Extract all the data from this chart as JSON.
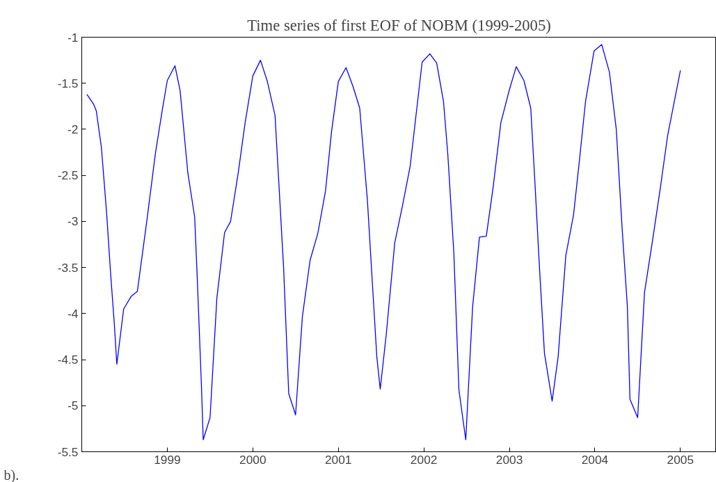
{
  "chart_data": {
    "type": "line",
    "title": "Time series of first EOF of NOBM (1999-2005)",
    "annotations": [
      "b)."
    ],
    "series": [
      {
        "color": "#0000ff",
        "x": [
          1998.06,
          1998.14,
          1998.17,
          1998.23,
          1998.29,
          1998.34,
          1998.38,
          1998.41,
          1998.49,
          1998.58,
          1998.65,
          1998.76,
          1998.86,
          1998.94,
          1999.0,
          1999.09,
          1999.15,
          1999.24,
          1999.32,
          1999.35,
          1999.4,
          1999.42,
          1999.5,
          1999.58,
          1999.67,
          1999.74,
          1999.83,
          1999.91,
          2000.0,
          2000.09,
          2000.17,
          2000.26,
          2000.36,
          2000.42,
          2000.5,
          2000.58,
          2000.67,
          2000.76,
          2000.85,
          2000.92,
          2001.0,
          2001.09,
          2001.17,
          2001.25,
          2001.34,
          2001.45,
          2001.49,
          2001.56,
          2001.66,
          2001.75,
          2001.84,
          2001.98,
          2002.07,
          2002.15,
          2002.23,
          2002.28,
          2002.35,
          2002.41,
          2002.49,
          2002.57,
          2002.65,
          2002.73,
          2002.81,
          2002.9,
          2003.0,
          2003.08,
          2003.17,
          2003.25,
          2003.3,
          2003.35,
          2003.41,
          2003.5,
          2003.57,
          2003.66,
          2003.75,
          2003.82,
          2003.89,
          2003.99,
          2004.08,
          2004.17,
          2004.25,
          2004.32,
          2004.38,
          2004.41,
          2004.5,
          2004.58,
          2004.67,
          2004.76,
          2004.85,
          2005.0
        ],
        "values": [
          -1.62,
          -1.73,
          -1.8,
          -2.2,
          -2.9,
          -3.6,
          -4.1,
          -4.55,
          -3.95,
          -3.81,
          -3.76,
          -3.0,
          -2.27,
          -1.8,
          -1.47,
          -1.31,
          -1.58,
          -2.47,
          -2.95,
          -3.6,
          -4.8,
          -5.37,
          -5.13,
          -3.83,
          -3.12,
          -3.0,
          -2.47,
          -1.93,
          -1.42,
          -1.25,
          -1.48,
          -1.85,
          -3.5,
          -4.87,
          -5.1,
          -4.03,
          -3.42,
          -3.13,
          -2.67,
          -2.03,
          -1.48,
          -1.33,
          -1.53,
          -1.77,
          -2.77,
          -4.47,
          -4.82,
          -4.23,
          -3.23,
          -2.83,
          -2.4,
          -1.27,
          -1.18,
          -1.28,
          -1.7,
          -2.27,
          -3.33,
          -4.83,
          -5.37,
          -3.93,
          -3.17,
          -3.16,
          -2.63,
          -1.93,
          -1.57,
          -1.32,
          -1.47,
          -1.77,
          -2.6,
          -3.47,
          -4.43,
          -4.95,
          -4.47,
          -3.37,
          -2.93,
          -2.33,
          -1.7,
          -1.15,
          -1.08,
          -1.38,
          -2.0,
          -3.1,
          -3.93,
          -4.93,
          -5.13,
          -3.77,
          -3.23,
          -2.67,
          -2.07,
          -1.36
        ]
      }
    ],
    "xlim": [
      1998.0,
      2005.42
    ],
    "xticks": [
      1999,
      2000,
      2001,
      2002,
      2003,
      2004,
      2005
    ],
    "ylim": [
      -5.5,
      -1
    ],
    "yticks": [
      -5.5,
      -5,
      -4.5,
      -4,
      -3.5,
      -3,
      -2.5,
      -2,
      -1.5,
      -1
    ],
    "grid": false
  }
}
